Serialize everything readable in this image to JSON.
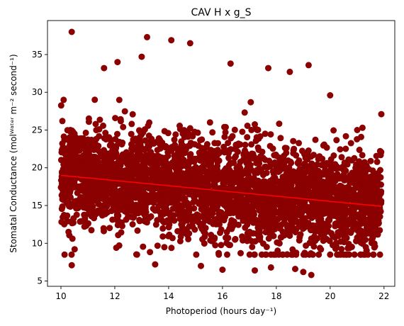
{
  "chart_data": {
    "type": "scatter",
    "title": "CAV H x g_S",
    "xlabel": "Photoperiod (hours day⁻¹)",
    "ylabel": "Stomatal Conductance (molᵂᵃᵗᵉʳ m⁻² second⁻¹)",
    "xlim": [
      9.5,
      22.4
    ],
    "ylim": [
      4.3,
      39.5
    ],
    "xticks": [
      10,
      12,
      14,
      16,
      18,
      20,
      22
    ],
    "yticks": [
      5,
      10,
      15,
      20,
      25,
      30,
      35
    ],
    "grid": false,
    "colors": {
      "points": "#8b0000",
      "fit": "#ff0000"
    },
    "fit_line": {
      "x": [
        10.0,
        21.9
      ],
      "y": [
        19.0,
        14.9
      ]
    },
    "cloud": {
      "x_range": [
        10.0,
        21.9
      ],
      "center_start": 19.0,
      "center_end": 14.9,
      "typical_range": [
        10,
        28
      ]
    },
    "outliers": [
      {
        "x": 10.4,
        "y": 38.0
      },
      {
        "x": 13.2,
        "y": 37.3
      },
      {
        "x": 14.1,
        "y": 36.9
      },
      {
        "x": 14.8,
        "y": 36.5
      },
      {
        "x": 13.0,
        "y": 34.7
      },
      {
        "x": 12.1,
        "y": 34.0
      },
      {
        "x": 16.3,
        "y": 33.8
      },
      {
        "x": 19.2,
        "y": 33.6
      },
      {
        "x": 17.7,
        "y": 33.2
      },
      {
        "x": 11.6,
        "y": 33.2
      },
      {
        "x": 18.5,
        "y": 32.7
      },
      {
        "x": 10.1,
        "y": 29.0
      },
      {
        "x": 20.0,
        "y": 29.6
      },
      {
        "x": 21.9,
        "y": 27.1
      },
      {
        "x": 21.2,
        "y": 25.3
      },
      {
        "x": 10.4,
        "y": 7.1
      },
      {
        "x": 16.0,
        "y": 6.5
      },
      {
        "x": 17.2,
        "y": 6.4
      },
      {
        "x": 17.8,
        "y": 6.8
      },
      {
        "x": 19.3,
        "y": 5.8
      },
      {
        "x": 19.0,
        "y": 6.2
      },
      {
        "x": 18.7,
        "y": 6.6
      },
      {
        "x": 13.5,
        "y": 7.2
      },
      {
        "x": 15.2,
        "y": 7.0
      }
    ]
  }
}
